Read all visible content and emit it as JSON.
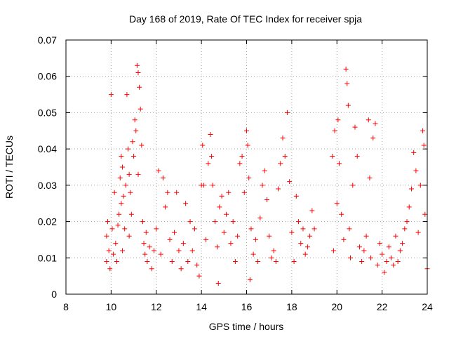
{
  "chart_data": {
    "type": "scatter",
    "title": "Day 168 of 2019, Rate Of TEC Index for receiver spja",
    "xlabel": "GPS time / hours",
    "ylabel": "ROTI / TECUs",
    "xlim": [
      8,
      24
    ],
    "ylim": [
      0,
      0.07
    ],
    "xticks": [
      "8",
      "10",
      "12",
      "14",
      "16",
      "18",
      "20",
      "22",
      "24"
    ],
    "yticks": [
      "0",
      "0.01",
      "0.02",
      "0.03",
      "0.04",
      "0.05",
      "0.06",
      "0.07"
    ],
    "grid": true,
    "marker": "plus",
    "color": "#ff0000",
    "series": [
      {
        "name": "ROTI",
        "points": [
          [
            9.8,
            0.009
          ],
          [
            9.8,
            0.016
          ],
          [
            9.85,
            0.02
          ],
          [
            9.9,
            0.012
          ],
          [
            9.95,
            0.007
          ],
          [
            10.0,
            0.055
          ],
          [
            10.05,
            0.018
          ],
          [
            10.1,
            0.011
          ],
          [
            10.15,
            0.028
          ],
          [
            10.2,
            0.014
          ],
          [
            10.25,
            0.009
          ],
          [
            10.3,
            0.019
          ],
          [
            10.35,
            0.022
          ],
          [
            10.4,
            0.032
          ],
          [
            10.45,
            0.038
          ],
          [
            10.45,
            0.025
          ],
          [
            10.5,
            0.035
          ],
          [
            10.5,
            0.012
          ],
          [
            10.55,
            0.027
          ],
          [
            10.6,
            0.018
          ],
          [
            10.65,
            0.03
          ],
          [
            10.7,
            0.055
          ],
          [
            10.75,
            0.04
          ],
          [
            10.8,
            0.033
          ],
          [
            10.8,
            0.016
          ],
          [
            10.85,
            0.028
          ],
          [
            10.9,
            0.022
          ],
          [
            10.95,
            0.042
          ],
          [
            11.0,
            0.038
          ],
          [
            11.05,
            0.048
          ],
          [
            11.1,
            0.045
          ],
          [
            11.15,
            0.063
          ],
          [
            11.2,
            0.061
          ],
          [
            11.2,
            0.033
          ],
          [
            11.25,
            0.057
          ],
          [
            11.3,
            0.051
          ],
          [
            11.35,
            0.041
          ],
          [
            11.4,
            0.02
          ],
          [
            11.45,
            0.014
          ],
          [
            11.5,
            0.011
          ],
          [
            11.55,
            0.017
          ],
          [
            11.6,
            0.009
          ],
          [
            11.7,
            0.013
          ],
          [
            11.8,
            0.007
          ],
          [
            11.9,
            0.012
          ],
          [
            12.0,
            0.018
          ],
          [
            12.1,
            0.034
          ],
          [
            12.2,
            0.011
          ],
          [
            12.3,
            0.032
          ],
          [
            12.4,
            0.024
          ],
          [
            12.5,
            0.028
          ],
          [
            12.6,
            0.015
          ],
          [
            12.7,
            0.009
          ],
          [
            12.8,
            0.017
          ],
          [
            12.9,
            0.028
          ],
          [
            13.0,
            0.012
          ],
          [
            13.1,
            0.007
          ],
          [
            13.2,
            0.014
          ],
          [
            13.3,
            0.025
          ],
          [
            13.4,
            0.009
          ],
          [
            13.5,
            0.02
          ],
          [
            13.6,
            0.012
          ],
          [
            13.7,
            0.018
          ],
          [
            13.8,
            0.008
          ],
          [
            13.9,
            0.005
          ],
          [
            14.0,
            0.03
          ],
          [
            14.05,
            0.041
          ],
          [
            14.1,
            0.03
          ],
          [
            14.2,
            0.015
          ],
          [
            14.3,
            0.036
          ],
          [
            14.4,
            0.044
          ],
          [
            14.45,
            0.038
          ],
          [
            14.5,
            0.03
          ],
          [
            14.6,
            0.02
          ],
          [
            14.7,
            0.013
          ],
          [
            14.75,
            0.003
          ],
          [
            14.8,
            0.024
          ],
          [
            14.9,
            0.027
          ],
          [
            15.0,
            0.017
          ],
          [
            15.1,
            0.022
          ],
          [
            15.2,
            0.028
          ],
          [
            15.3,
            0.014
          ],
          [
            15.4,
            0.02
          ],
          [
            15.5,
            0.009
          ],
          [
            15.6,
            0.016
          ],
          [
            15.7,
            0.036
          ],
          [
            15.8,
            0.038
          ],
          [
            15.9,
            0.028
          ],
          [
            16.0,
            0.045
          ],
          [
            16.05,
            0.041
          ],
          [
            16.1,
            0.032
          ],
          [
            16.15,
            0.004
          ],
          [
            16.2,
            0.018
          ],
          [
            16.3,
            0.011
          ],
          [
            16.4,
            0.015
          ],
          [
            16.5,
            0.009
          ],
          [
            16.6,
            0.021
          ],
          [
            16.7,
            0.03
          ],
          [
            16.8,
            0.034
          ],
          [
            16.9,
            0.026
          ],
          [
            17.0,
            0.016
          ],
          [
            17.1,
            0.01
          ],
          [
            17.2,
            0.012
          ],
          [
            17.3,
            0.009
          ],
          [
            17.4,
            0.029
          ],
          [
            17.5,
            0.036
          ],
          [
            17.6,
            0.043
          ],
          [
            17.7,
            0.038
          ],
          [
            17.8,
            0.05
          ],
          [
            17.9,
            0.031
          ],
          [
            18.0,
            0.017
          ],
          [
            18.1,
            0.009
          ],
          [
            18.2,
            0.027
          ],
          [
            18.3,
            0.02
          ],
          [
            18.4,
            0.014
          ],
          [
            18.5,
            0.018
          ],
          [
            18.6,
            0.011
          ],
          [
            18.7,
            0.013
          ],
          [
            18.8,
            0.016
          ],
          [
            18.9,
            0.023
          ],
          [
            19.0,
            0.018
          ],
          [
            19.8,
            0.038
          ],
          [
            19.85,
            0.012
          ],
          [
            19.9,
            0.045
          ],
          [
            20.0,
            0.025
          ],
          [
            20.05,
            0.048
          ],
          [
            20.1,
            0.036
          ],
          [
            20.2,
            0.022
          ],
          [
            20.3,
            0.015
          ],
          [
            20.4,
            0.062
          ],
          [
            20.45,
            0.058
          ],
          [
            20.5,
            0.052
          ],
          [
            20.55,
            0.018
          ],
          [
            20.6,
            0.01
          ],
          [
            20.7,
            0.03
          ],
          [
            20.8,
            0.046
          ],
          [
            20.9,
            0.038
          ],
          [
            21.0,
            0.013
          ],
          [
            21.1,
            0.009
          ],
          [
            21.2,
            0.012
          ],
          [
            21.3,
            0.016
          ],
          [
            21.4,
            0.048
          ],
          [
            21.45,
            0.032
          ],
          [
            21.5,
            0.01
          ],
          [
            21.6,
            0.043
          ],
          [
            21.7,
            0.047
          ],
          [
            21.8,
            0.008
          ],
          [
            21.9,
            0.014
          ],
          [
            22.0,
            0.011
          ],
          [
            22.1,
            0.006
          ],
          [
            22.2,
            0.009
          ],
          [
            22.3,
            0.013
          ],
          [
            22.4,
            0.01
          ],
          [
            22.5,
            0.008
          ],
          [
            22.6,
            0.016
          ],
          [
            22.7,
            0.009
          ],
          [
            22.8,
            0.012
          ],
          [
            22.9,
            0.014
          ],
          [
            23.0,
            0.018
          ],
          [
            23.1,
            0.02
          ],
          [
            23.2,
            0.024
          ],
          [
            23.3,
            0.029
          ],
          [
            23.4,
            0.039
          ],
          [
            23.5,
            0.034
          ],
          [
            23.6,
            0.017
          ],
          [
            23.7,
            0.03
          ],
          [
            23.8,
            0.045
          ],
          [
            23.85,
            0.041
          ],
          [
            23.9,
            0.022
          ],
          [
            24.0,
            0.007
          ]
        ]
      }
    ]
  }
}
